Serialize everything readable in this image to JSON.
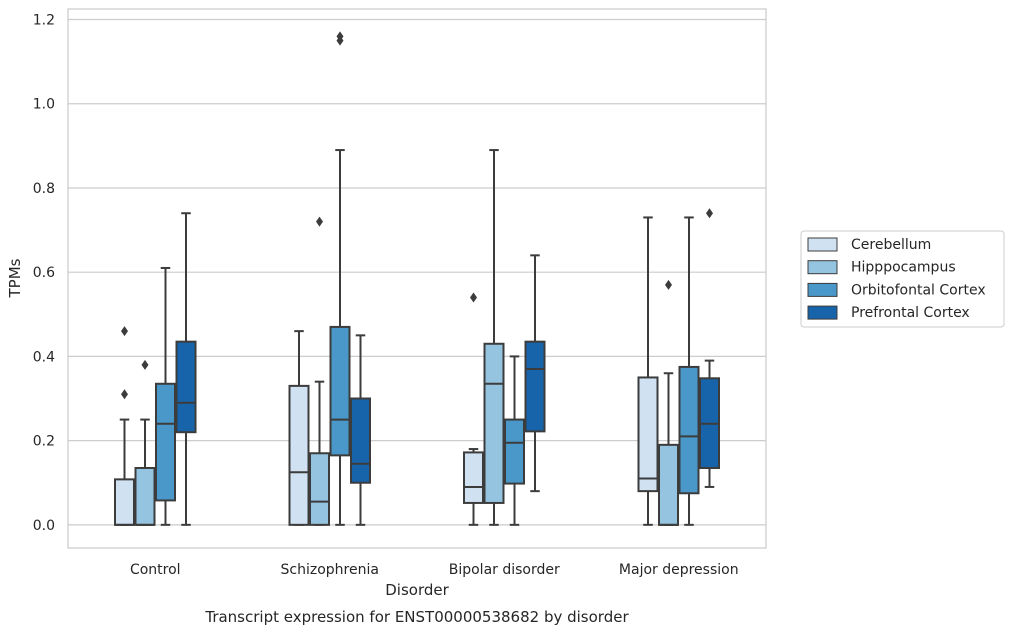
{
  "chart_data": {
    "type": "box",
    "title": "Transcript expression for ENST00000538682 by disorder",
    "xlabel": "Disorder",
    "ylabel": "TPMs",
    "ylim": [
      -0.055,
      1.225
    ],
    "yticks": [
      "0.0",
      "0.2",
      "0.4",
      "0.6",
      "0.8",
      "1.0",
      "1.2"
    ],
    "grid": "horizontal",
    "legend_position": "right",
    "categories": [
      "Control",
      "Schizophrenia",
      "Bipolar disorder",
      "Major depression"
    ],
    "series": [
      {
        "name": "Cerebellum",
        "color": "#d0e1f2",
        "boxes": [
          {
            "whisker_low": 0.0,
            "q1": 0.0,
            "median": 0.0,
            "q3": 0.108,
            "whisker_high": 0.25,
            "outliers": [
              0.31,
              0.46
            ]
          },
          {
            "whisker_low": 0.0,
            "q1": 0.0,
            "median": 0.125,
            "q3": 0.33,
            "whisker_high": 0.46,
            "outliers": []
          },
          {
            "whisker_low": 0.0,
            "q1": 0.052,
            "median": 0.09,
            "q3": 0.172,
            "whisker_high": 0.18,
            "outliers": [
              0.54
            ]
          },
          {
            "whisker_low": 0.0,
            "q1": 0.08,
            "median": 0.11,
            "q3": 0.35,
            "whisker_high": 0.73,
            "outliers": []
          }
        ]
      },
      {
        "name": "Hipppocampus",
        "color": "#94c4df",
        "boxes": [
          {
            "whisker_low": 0.0,
            "q1": 0.0,
            "median": 0.0,
            "q3": 0.135,
            "whisker_high": 0.25,
            "outliers": [
              0.38
            ]
          },
          {
            "whisker_low": 0.0,
            "q1": 0.0,
            "median": 0.055,
            "q3": 0.17,
            "whisker_high": 0.34,
            "outliers": [
              0.72
            ]
          },
          {
            "whisker_low": 0.0,
            "q1": 0.052,
            "median": 0.335,
            "q3": 0.43,
            "whisker_high": 0.89,
            "outliers": []
          },
          {
            "whisker_low": 0.0,
            "q1": 0.0,
            "median": 0.0,
            "q3": 0.19,
            "whisker_high": 0.36,
            "outliers": [
              0.57
            ]
          }
        ]
      },
      {
        "name": "Orbitofontal Cortex",
        "color": "#4a98c9",
        "boxes": [
          {
            "whisker_low": 0.0,
            "q1": 0.058,
            "median": 0.24,
            "q3": 0.335,
            "whisker_high": 0.61,
            "outliers": []
          },
          {
            "whisker_low": 0.0,
            "q1": 0.165,
            "median": 0.25,
            "q3": 0.47,
            "whisker_high": 0.89,
            "outliers": [
              1.15,
              1.16
            ]
          },
          {
            "whisker_low": 0.0,
            "q1": 0.098,
            "median": 0.195,
            "q3": 0.25,
            "whisker_high": 0.4,
            "outliers": []
          },
          {
            "whisker_low": 0.0,
            "q1": 0.075,
            "median": 0.21,
            "q3": 0.375,
            "whisker_high": 0.73,
            "outliers": []
          }
        ]
      },
      {
        "name": "Prefrontal Cortex",
        "color": "#1764ab",
        "boxes": [
          {
            "whisker_low": 0.0,
            "q1": 0.22,
            "median": 0.29,
            "q3": 0.435,
            "whisker_high": 0.74,
            "outliers": []
          },
          {
            "whisker_low": 0.0,
            "q1": 0.1,
            "median": 0.145,
            "q3": 0.3,
            "whisker_high": 0.45,
            "outliers": []
          },
          {
            "whisker_low": 0.08,
            "q1": 0.222,
            "median": 0.37,
            "q3": 0.435,
            "whisker_high": 0.64,
            "outliers": []
          },
          {
            "whisker_low": 0.09,
            "q1": 0.135,
            "median": 0.24,
            "q3": 0.348,
            "whisker_high": 0.39,
            "outliers": [
              0.74
            ]
          }
        ]
      }
    ]
  }
}
